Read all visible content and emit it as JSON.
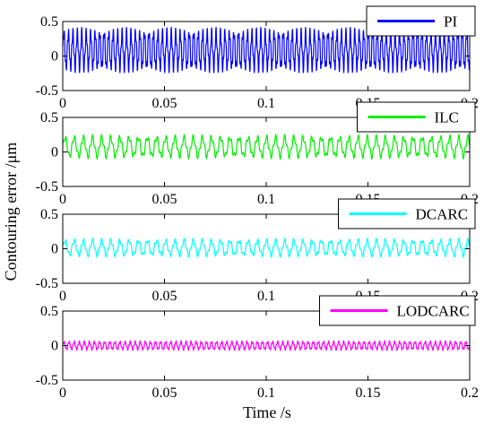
{
  "chart_data": {
    "type": "line",
    "xlabel": "Time /s",
    "ylabel": "Contouring error /μm",
    "xlim": [
      0,
      0.2
    ],
    "ylim": [
      -0.5,
      0.5
    ],
    "xticks": [
      0,
      0.05,
      0.1,
      0.15,
      0.2
    ],
    "xtick_labels": [
      "0",
      "0.05",
      "0.1",
      "0.15",
      "0.2"
    ],
    "yticks": [
      -0.5,
      0,
      0.5
    ],
    "ytick_labels": [
      "-0.5",
      "0",
      "0.5"
    ],
    "grid": false,
    "legend_position": "top-right",
    "panels": [
      {
        "series": [
          {
            "name": "PI",
            "color": "#0000ff",
            "amplitude_max": 0.42,
            "amplitude_min": -0.25,
            "oscillation_period_s": 0.0022
          }
        ]
      },
      {
        "series": [
          {
            "name": "ILC",
            "color": "#00ee00",
            "amplitude_max": 0.25,
            "amplitude_min": -0.1,
            "oscillation_period_s": 0.0045
          }
        ]
      },
      {
        "series": [
          {
            "name": "DCARC",
            "color": "#00ffff",
            "amplitude_max": 0.15,
            "amplitude_min": -0.12,
            "oscillation_period_s": 0.0045
          }
        ]
      },
      {
        "series": [
          {
            "name": "LODCARC",
            "color": "#ff00ff",
            "amplitude_max": 0.07,
            "amplitude_min": -0.07,
            "oscillation_period_s": 0.0025
          }
        ]
      }
    ]
  }
}
